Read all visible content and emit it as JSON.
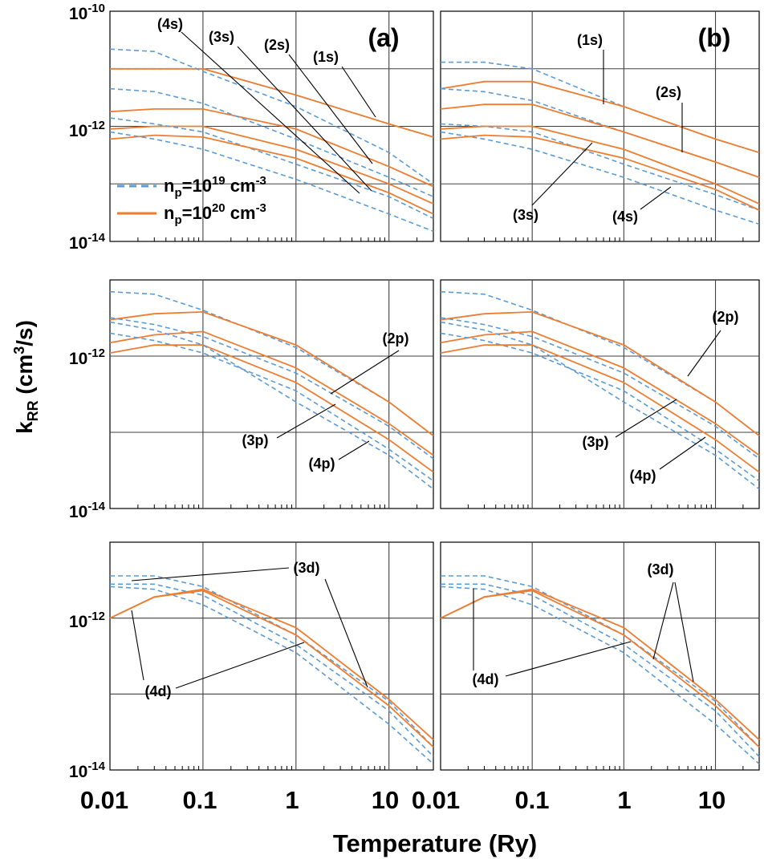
{
  "figure": {
    "xlabel": "Temperature (Ry)",
    "ylabel": "k",
    "ylabel_sub": "RR",
    "ylabel_units_pre": " (cm",
    "ylabel_units_sup": "3",
    "ylabel_units_post": "/s)",
    "x_ticks": [
      "0.01",
      "0.1",
      "1",
      "10"
    ],
    "y_ticks_exponents": [
      "-10",
      "-12",
      "-14"
    ],
    "y_tick_base": "10",
    "legend": [
      {
        "pre": "n",
        "sub": "p",
        "mid": "=10",
        "sup": "19",
        "post": " cm",
        "sup2": "-3",
        "style": "dashed",
        "color": "#5B9BD5"
      },
      {
        "pre": "n",
        "sub": "p",
        "mid": "=10",
        "sup": "20",
        "post": " cm",
        "sup2": "-3",
        "style": "solid",
        "color": "#ED7D31"
      }
    ],
    "colors": {
      "dashed": "#5B9BD5",
      "solid": "#ED7D31",
      "grid": "#404040",
      "frame": "#000000"
    }
  },
  "chart_data": [
    {
      "panel": "(a)",
      "type": "line",
      "row": 0,
      "col": 0,
      "x": [
        0.01,
        0.03,
        0.1,
        1,
        10,
        30
      ],
      "x_scale": "log",
      "y_scale": "log",
      "xlim": [
        0.01,
        30
      ],
      "ylim": [
        1e-14,
        1e-10
      ],
      "series": [
        {
          "group": "1s",
          "style": "dashed",
          "values": [
            1e-11,
            1e-11,
            1e-11,
            3.5e-12,
            1.1e-12,
            6.5e-13
          ]
        },
        {
          "group": "1s",
          "style": "solid",
          "values": [
            1e-11,
            1e-11,
            1e-11,
            3.5e-12,
            1.1e-12,
            6.5e-13
          ]
        },
        {
          "group": "2s",
          "style": "dashed",
          "values": [
            2.2e-11,
            2e-11,
            9e-12,
            2.2e-12,
            3.5e-13,
            1e-13
          ]
        },
        {
          "group": "2s",
          "style": "solid",
          "values": [
            1.8e-12,
            2e-12,
            2e-12,
            9e-13,
            2e-13,
            9e-14
          ]
        },
        {
          "group": "3s",
          "style": "dashed",
          "values": [
            4.5e-12,
            4e-12,
            2.5e-12,
            6e-13,
            1.3e-13,
            6e-14
          ]
        },
        {
          "group": "3s",
          "style": "solid",
          "values": [
            9e-13,
            1e-12,
            1e-12,
            4e-13,
            1e-13,
            4.5e-14
          ]
        },
        {
          "group": "4s",
          "style": "dashed",
          "values": [
            1.4e-12,
            1.1e-12,
            8e-13,
            2.2e-13,
            6e-14,
            2.5e-14
          ]
        },
        {
          "group": "4s",
          "style": "solid",
          "values": [
            6e-13,
            7e-13,
            6.5e-13,
            2.8e-13,
            7e-14,
            3e-14
          ]
        },
        {
          "group": "4s-low",
          "style": "dashed",
          "values": [
            8e-13,
            6e-13,
            4e-13,
            1.2e-13,
            3e-14,
            1.5e-14
          ]
        }
      ],
      "annotations": [
        "(a)",
        "(4s)",
        "(3s)",
        "(2s)",
        "(1s)"
      ]
    },
    {
      "panel": "(b)",
      "type": "line",
      "row": 0,
      "col": 1,
      "x": [
        0.01,
        0.03,
        0.1,
        1,
        10,
        30
      ],
      "x_scale": "log",
      "y_scale": "log",
      "xlim": [
        0.01,
        30
      ],
      "ylim": [
        1e-14,
        1e-10
      ],
      "series": [
        {
          "group": "1s",
          "style": "dashed",
          "values": [
            1.3e-11,
            1.3e-11,
            1e-11,
            2.2e-12,
            6e-13,
            3.5e-13
          ]
        },
        {
          "group": "1s",
          "style": "solid",
          "values": [
            4.5e-12,
            6e-12,
            6e-12,
            2.2e-12,
            6e-13,
            3.5e-13
          ]
        },
        {
          "group": "2s",
          "style": "dashed",
          "values": [
            4.5e-12,
            4e-12,
            2.8e-12,
            8e-13,
            2.4e-13,
            1.3e-13
          ]
        },
        {
          "group": "2s",
          "style": "solid",
          "values": [
            2e-12,
            2.4e-12,
            2.4e-12,
            8e-13,
            2.4e-13,
            1.3e-13
          ]
        },
        {
          "group": "3s",
          "style": "dashed",
          "values": [
            1.1e-12,
            1e-12,
            8e-13,
            2.2e-13,
            6.5e-14,
            3.5e-14
          ]
        },
        {
          "group": "3s",
          "style": "solid",
          "values": [
            9e-13,
            1e-12,
            1e-12,
            4e-13,
            1e-13,
            4.5e-14
          ]
        },
        {
          "group": "4s",
          "style": "dashed",
          "values": [
            8e-13,
            6e-13,
            4e-13,
            1.3e-13,
            3.5e-14,
            2e-14
          ]
        },
        {
          "group": "4s",
          "style": "solid",
          "values": [
            6e-13,
            7e-13,
            6.5e-13,
            2.8e-13,
            8e-14,
            3.5e-14
          ]
        }
      ],
      "annotations": [
        "(b)",
        "(1s)",
        "(2s)",
        "(3s)",
        "(4s)"
      ]
    },
    {
      "panel": "p",
      "type": "line",
      "row": 1,
      "col": 0,
      "x": [
        0.01,
        0.03,
        0.1,
        1,
        10,
        30
      ],
      "x_scale": "log",
      "y_scale": "log",
      "xlim": [
        0.01,
        30
      ],
      "ylim": [
        1e-14,
        1e-11
      ],
      "series": [
        {
          "group": "2p",
          "style": "dashed",
          "values": [
            7e-12,
            6.5e-12,
            4e-12,
            1.3e-12,
            2.5e-13,
            9e-14
          ]
        },
        {
          "group": "2p",
          "style": "solid",
          "values": [
            3e-12,
            3.6e-12,
            3.8e-12,
            1.4e-12,
            2.5e-13,
            9e-14
          ]
        },
        {
          "group": "3p",
          "style": "dashed",
          "values": [
            3.2e-12,
            2.6e-12,
            1.8e-12,
            6e-13,
            1.2e-13,
            4.5e-14
          ]
        },
        {
          "group": "3p",
          "style": "solid",
          "values": [
            1.5e-12,
            1.9e-12,
            2.1e-12,
            7e-13,
            1.3e-13,
            5e-14
          ]
        },
        {
          "group": "4p",
          "style": "dashed",
          "values": [
            2e-12,
            1.6e-12,
            1.1e-12,
            3.5e-13,
            6e-14,
            2.3e-14
          ]
        },
        {
          "group": "4p",
          "style": "solid",
          "values": [
            1.1e-12,
            1.4e-12,
            1.4e-12,
            4.5e-13,
            8e-14,
            3e-14
          ]
        },
        {
          "group": "4p-low",
          "style": "dashed",
          "values": [
            2.8e-12,
            2.2e-12,
            1.4e-12,
            2.5e-13,
            5e-14,
            1.8e-14
          ]
        }
      ],
      "annotations": [
        "(2p)",
        "(3p)",
        "(4p)"
      ]
    },
    {
      "panel": "p",
      "type": "line",
      "row": 1,
      "col": 1,
      "x": [
        0.01,
        0.03,
        0.1,
        1,
        10,
        30
      ],
      "x_scale": "log",
      "y_scale": "log",
      "xlim": [
        0.01,
        30
      ],
      "ylim": [
        1e-14,
        1e-11
      ],
      "series": [
        {
          "group": "2p",
          "style": "dashed",
          "values": [
            7e-12,
            6.5e-12,
            4e-12,
            1.3e-12,
            2.5e-13,
            9e-14
          ]
        },
        {
          "group": "2p",
          "style": "solid",
          "values": [
            3e-12,
            3.6e-12,
            3.8e-12,
            1.4e-12,
            2.5e-13,
            9e-14
          ]
        },
        {
          "group": "3p",
          "style": "dashed",
          "values": [
            3.2e-12,
            2.6e-12,
            1.8e-12,
            6e-13,
            1.2e-13,
            4.5e-14
          ]
        },
        {
          "group": "3p",
          "style": "solid",
          "values": [
            1.5e-12,
            1.9e-12,
            2.1e-12,
            7e-13,
            1.3e-13,
            5e-14
          ]
        },
        {
          "group": "4p",
          "style": "dashed",
          "values": [
            2e-12,
            1.6e-12,
            1.1e-12,
            3.5e-13,
            6e-14,
            2.3e-14
          ]
        },
        {
          "group": "4p",
          "style": "solid",
          "values": [
            1.1e-12,
            1.4e-12,
            1.4e-12,
            4.5e-13,
            8e-14,
            3e-14
          ]
        },
        {
          "group": "4p-low",
          "style": "dashed",
          "values": [
            2.8e-12,
            2.2e-12,
            1.4e-12,
            2.5e-13,
            5e-14,
            1.8e-14
          ]
        }
      ],
      "annotations": [
        "(2p)",
        "(3p)",
        "(4p)"
      ]
    },
    {
      "panel": "d",
      "type": "line",
      "row": 2,
      "col": 0,
      "x": [
        0.01,
        0.03,
        0.1,
        1,
        10,
        30
      ],
      "x_scale": "log",
      "y_scale": "log",
      "xlim": [
        0.01,
        30
      ],
      "ylim": [
        1e-14,
        1e-11
      ],
      "series": [
        {
          "group": "3d",
          "style": "dashed",
          "values": [
            3.6e-12,
            3.6e-12,
            2.6e-12,
            6e-13,
            8e-14,
            2e-14
          ]
        },
        {
          "group": "4d",
          "style": "dashed",
          "values": [
            2.8e-12,
            2.8e-12,
            2e-12,
            4.5e-13,
            6e-14,
            1.5e-14
          ]
        },
        {
          "group": "4d-low",
          "style": "dashed",
          "values": [
            2.6e-12,
            2.4e-12,
            1.5e-12,
            3.5e-13,
            4e-14,
            1.2e-14
          ]
        },
        {
          "group": "3d",
          "style": "solid",
          "values": [
            1e-12,
            1.9e-12,
            2.4e-12,
            7.5e-13,
            8.5e-14,
            2.5e-14
          ]
        },
        {
          "group": "4d",
          "style": "solid",
          "values": [
            1e-12,
            1.9e-12,
            2.3e-12,
            6e-13,
            7e-14,
            2e-14
          ]
        }
      ],
      "annotations": [
        "(3d)",
        "(4d)"
      ]
    },
    {
      "panel": "d",
      "type": "line",
      "row": 2,
      "col": 1,
      "x": [
        0.01,
        0.03,
        0.1,
        1,
        10,
        30
      ],
      "x_scale": "log",
      "y_scale": "log",
      "xlim": [
        0.01,
        30
      ],
      "ylim": [
        1e-14,
        1e-11
      ],
      "series": [
        {
          "group": "3d",
          "style": "dashed",
          "values": [
            3.6e-12,
            3.6e-12,
            2.6e-12,
            6e-13,
            8e-14,
            2e-14
          ]
        },
        {
          "group": "4d",
          "style": "dashed",
          "values": [
            2.8e-12,
            2.8e-12,
            2e-12,
            4.5e-13,
            6e-14,
            1.5e-14
          ]
        },
        {
          "group": "4d-low",
          "style": "dashed",
          "values": [
            2.6e-12,
            2.4e-12,
            1.5e-12,
            3.5e-13,
            4e-14,
            1.2e-14
          ]
        },
        {
          "group": "3d",
          "style": "solid",
          "values": [
            1e-12,
            1.9e-12,
            2.4e-12,
            7.5e-13,
            8.5e-14,
            2.5e-14
          ]
        },
        {
          "group": "4d",
          "style": "solid",
          "values": [
            1e-12,
            1.9e-12,
            2.3e-12,
            6e-13,
            7e-14,
            2e-14
          ]
        }
      ],
      "annotations": [
        "(3d)",
        "(4d)"
      ]
    }
  ]
}
